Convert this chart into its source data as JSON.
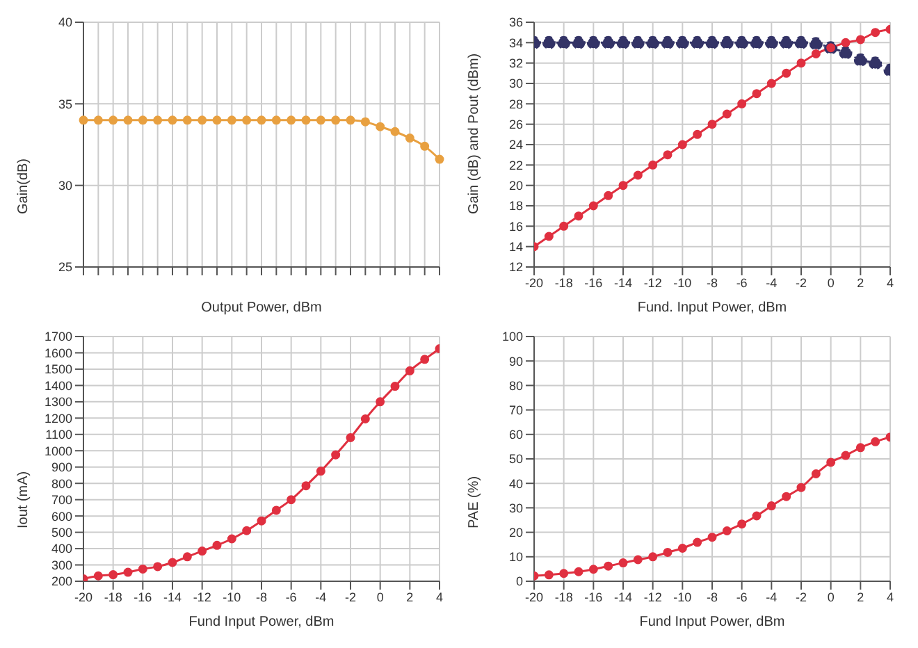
{
  "chart_data": [
    {
      "type": "line",
      "xlabel": "Output Power, dBm",
      "ylabel": "Gain(dB)",
      "categories": [
        null,
        null,
        null,
        null,
        null,
        null,
        null,
        null,
        null,
        null,
        null,
        null,
        null,
        null,
        null,
        null,
        null,
        null,
        null,
        null,
        null,
        null,
        null,
        null,
        null
      ],
      "series": [
        {
          "color": "#e8a040",
          "values": [
            34,
            34,
            34,
            34,
            34,
            34,
            34,
            34,
            34,
            34,
            34,
            34,
            34,
            34,
            34,
            34,
            34,
            34,
            34,
            33.9,
            33.6,
            33.3,
            32.9,
            32.4,
            31.6
          ]
        }
      ],
      "ylim": [
        25,
        40
      ],
      "yticks": [
        25,
        30,
        35,
        40
      ],
      "grid": true,
      "marker": "circle"
    },
    {
      "type": "line",
      "xlabel": "Fund. Input Power, dBm",
      "ylabel": "Gain (dB) and Pout (dBm)",
      "x": [
        -20,
        -19,
        -18,
        -17,
        -16,
        -15,
        -14,
        -13,
        -12,
        -11,
        -10,
        -9,
        -8,
        -7,
        -6,
        -5,
        -4,
        -3,
        -2,
        -1,
        0,
        1,
        2,
        3,
        4
      ],
      "series": [
        {
          "color": "#333366",
          "line_style": "dashed",
          "values": [
            34,
            34,
            34,
            34,
            34,
            34,
            34,
            34,
            34,
            34,
            34,
            34,
            34,
            34,
            34,
            34,
            34,
            34,
            34,
            33.9,
            33.5,
            33,
            32.3,
            32,
            31.3
          ]
        },
        {
          "color": "#e03040",
          "values": [
            14,
            15,
            16,
            17,
            18,
            19,
            20,
            21,
            22,
            23,
            24,
            25,
            26,
            27,
            28,
            29,
            30,
            31,
            32,
            32.9,
            33.5,
            34,
            34.3,
            35,
            35.3
          ]
        }
      ],
      "xlim": [
        -20,
        4
      ],
      "xticks": [
        -20,
        -18,
        -16,
        -14,
        -12,
        -10,
        -8,
        -6,
        -4,
        -2,
        0,
        2,
        4
      ],
      "ylim": [
        12,
        36
      ],
      "yticks": [
        12,
        14,
        16,
        18,
        20,
        22,
        24,
        26,
        28,
        30,
        32,
        34,
        36
      ],
      "grid": true,
      "marker": "circle"
    },
    {
      "type": "line",
      "xlabel": "Fund Input Power, dBm",
      "ylabel": "Iout (mA)",
      "x": [
        -20,
        -19,
        -18,
        -17,
        -16,
        -15,
        -14,
        -13,
        -12,
        -11,
        -10,
        -9,
        -8,
        -7,
        -6,
        -5,
        -4,
        -3,
        -2,
        -1,
        0,
        1,
        2,
        3,
        4
      ],
      "series": [
        {
          "color": "#e03040",
          "values": [
            215,
            233,
            240,
            255,
            275,
            290,
            315,
            350,
            385,
            420,
            460,
            510,
            570,
            635,
            700,
            785,
            875,
            975,
            1080,
            1195,
            1300,
            1395,
            1490,
            1560,
            1625
          ]
        }
      ],
      "xlim": [
        -20,
        4
      ],
      "xticks": [
        -20,
        -18,
        -16,
        -14,
        -12,
        -10,
        -8,
        -6,
        -4,
        -2,
        0,
        2,
        4
      ],
      "ylim": [
        200,
        1700
      ],
      "yticks": [
        200,
        300,
        400,
        500,
        600,
        700,
        800,
        900,
        1000,
        1100,
        1200,
        1300,
        1400,
        1500,
        1600,
        1700
      ],
      "grid": true,
      "marker": "circle"
    },
    {
      "type": "line",
      "xlabel": "Fund Input Power, dBm",
      "ylabel": "PAE (%)",
      "x": [
        -20,
        -19,
        -18,
        -17,
        -16,
        -15,
        -14,
        -13,
        -12,
        -11,
        -10,
        -9,
        -8,
        -7,
        -6,
        -5,
        -4,
        -3,
        -2,
        -1,
        0,
        1,
        2,
        3,
        4
      ],
      "series": [
        {
          "color": "#e03040",
          "values": [
            2.2,
            2.6,
            3.2,
            3.9,
            4.9,
            6.2,
            7.5,
            8.8,
            10,
            11.8,
            13.5,
            15.9,
            18,
            20.6,
            23.4,
            26.7,
            30.8,
            34.6,
            38.3,
            43.9,
            48.6,
            51.4,
            54.6,
            57,
            58.9
          ]
        }
      ],
      "xlim": [
        -20,
        4
      ],
      "xticks": [
        -20,
        -18,
        -16,
        -14,
        -12,
        -10,
        -8,
        -6,
        -4,
        -2,
        0,
        2,
        4
      ],
      "ylim": [
        0,
        100
      ],
      "yticks": [
        0,
        10,
        20,
        30,
        40,
        50,
        60,
        70,
        80,
        90,
        100
      ],
      "grid": true,
      "marker": "circle"
    }
  ]
}
